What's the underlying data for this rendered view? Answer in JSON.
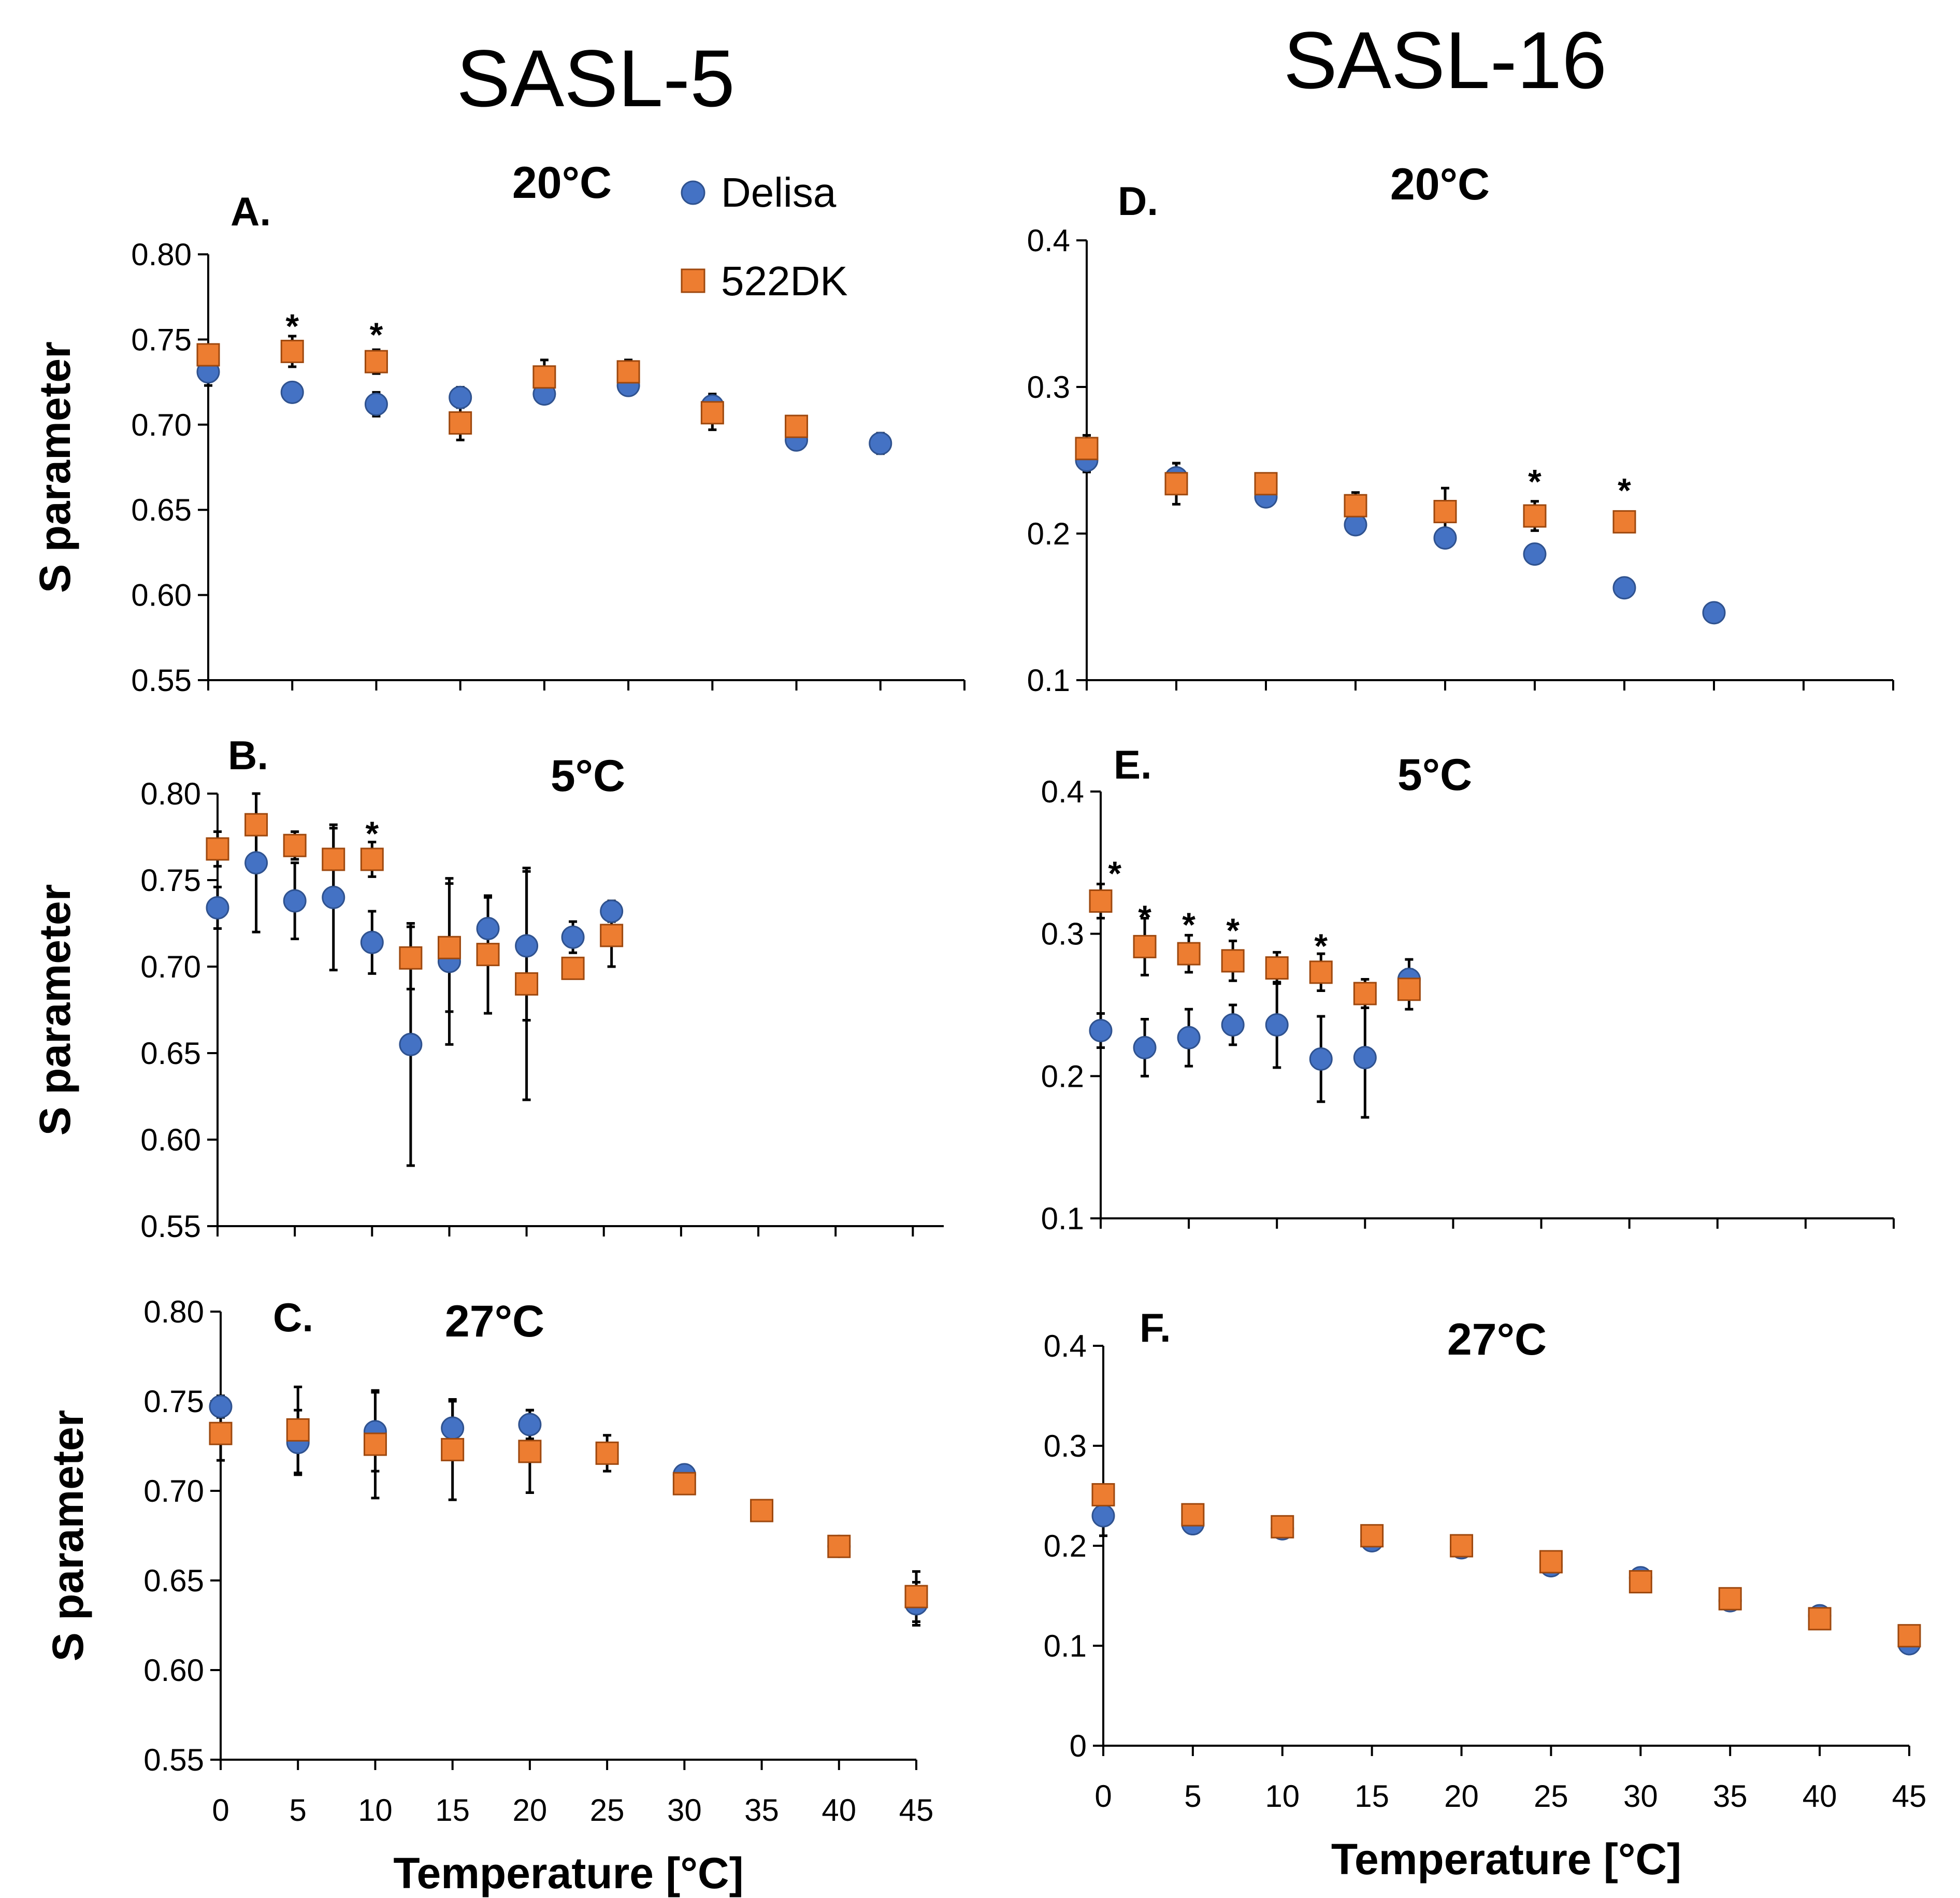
{
  "column_titles": [
    "SASL-5",
    "SASL-16"
  ],
  "legend": [
    {
      "label": "Delisa",
      "color": "#4472C4",
      "marker": "circle"
    },
    {
      "label": "522DK",
      "color": "#ED7D31",
      "marker": "square"
    }
  ],
  "chart_data": [
    {
      "type": "scatter",
      "panel": "A.",
      "title": "20°C",
      "xlabel": "",
      "ylabel": "S parameter",
      "x_tick_labels_shown": false,
      "xlim": [
        0,
        45
      ],
      "ylim": [
        0.55,
        0.8
      ],
      "yticks": [
        "0.80",
        "0.75",
        "0.70",
        "0.65",
        "0.60",
        "0.55"
      ],
      "yticks_values": [
        0.8,
        0.75,
        0.7,
        0.65,
        0.6,
        0.55
      ],
      "series": [
        {
          "name": "Delisa",
          "x": [
            0,
            5,
            10,
            15,
            20,
            25,
            30,
            35,
            40
          ],
          "y": [
            0.731,
            0.719,
            0.712,
            0.716,
            0.718,
            0.723,
            0.711,
            0.691,
            0.689
          ],
          "err": [
            0.008,
            0.004,
            0.007,
            0.006,
            0.004,
            0.005,
            0.007,
            0.005,
            0.006
          ]
        },
        {
          "name": "522DK",
          "x": [
            0,
            5,
            10,
            15,
            20,
            25,
            30,
            35
          ],
          "y": [
            0.741,
            0.743,
            0.737,
            0.701,
            0.728,
            0.731,
            0.707,
            0.699
          ],
          "err": [
            0.006,
            0.009,
            0.007,
            0.01,
            0.01,
            0.007,
            0.01,
            0.004
          ]
        }
      ],
      "significance_markers": [
        {
          "x": 5,
          "y": 0.76,
          "text": "*"
        },
        {
          "x": 10,
          "y": 0.755,
          "text": "*"
        }
      ]
    },
    {
      "type": "scatter",
      "panel": "B.",
      "title": "5°C",
      "xlabel": "",
      "ylabel": "S parameter",
      "x_tick_labels_shown": false,
      "xlim": [
        0,
        47
      ],
      "ylim": [
        0.55,
        0.8
      ],
      "yticks": [
        "0.80",
        "0.75",
        "0.70",
        "0.65",
        "0.60",
        "0.55"
      ],
      "yticks_values": [
        0.8,
        0.75,
        0.7,
        0.65,
        0.6,
        0.55
      ],
      "series": [
        {
          "name": "Delisa",
          "x": [
            0,
            2.5,
            5,
            7.5,
            10,
            12.5,
            15,
            17.5,
            20,
            23,
            25.5
          ],
          "y": [
            0.734,
            0.76,
            0.738,
            0.74,
            0.714,
            0.655,
            0.703,
            0.722,
            0.712,
            0.717,
            0.732
          ],
          "err": [
            0.012,
            0.04,
            0.022,
            0.042,
            0.018,
            0.07,
            0.048,
            0.018,
            0.043,
            0.009,
            0.006
          ]
        },
        {
          "name": "522DK",
          "x": [
            0,
            2.5,
            5,
            7.5,
            10,
            12.5,
            15,
            17.5,
            20,
            23,
            25.5
          ],
          "y": [
            0.768,
            0.782,
            0.77,
            0.762,
            0.762,
            0.705,
            0.711,
            0.707,
            0.69,
            0.699,
            0.718
          ],
          "err": [
            0.01,
            0.018,
            0.008,
            0.018,
            0.01,
            0.018,
            0.037,
            0.034,
            0.067,
            0.004,
            0.018
          ]
        }
      ],
      "significance_markers": [
        {
          "x": 10,
          "y": 0.779,
          "text": "*"
        }
      ]
    },
    {
      "type": "scatter",
      "panel": "C.",
      "title": "27°C",
      "xlabel": "Temperature [°C]",
      "ylabel": "S parameter",
      "x_tick_labels_shown": true,
      "xlim": [
        0,
        45
      ],
      "ylim": [
        0.55,
        0.8
      ],
      "xticks": [
        "0",
        "5",
        "10",
        "15",
        "20",
        "25",
        "30",
        "35",
        "40",
        "45"
      ],
      "xticks_values": [
        0,
        5,
        10,
        15,
        20,
        25,
        30,
        35,
        40,
        45
      ],
      "yticks": [
        "0.80",
        "0.75",
        "0.70",
        "0.65",
        "0.60",
        "0.55"
      ],
      "yticks_values": [
        0.8,
        0.75,
        0.7,
        0.65,
        0.6,
        0.55
      ],
      "series": [
        {
          "name": "Delisa",
          "x": [
            0,
            5,
            10,
            15,
            20,
            30,
            40,
            45
          ],
          "y": [
            0.747,
            0.727,
            0.733,
            0.735,
            0.737,
            0.709,
            0.669,
            0.637
          ],
          "err": [
            0.006,
            0.018,
            0.022,
            0.015,
            0.008,
            0.003,
            0.004,
            0.012
          ]
        },
        {
          "name": "522DK",
          "x": [
            0,
            5,
            10,
            15,
            20,
            25,
            30,
            35,
            40,
            45
          ],
          "y": [
            0.732,
            0.734,
            0.726,
            0.723,
            0.722,
            0.721,
            0.704,
            0.689,
            0.669,
            0.641
          ],
          "err": [
            0.015,
            0.024,
            0.03,
            0.028,
            0.023,
            0.01,
            0.004,
            0.004,
            0.003,
            0.014
          ]
        }
      ],
      "significance_markers": []
    },
    {
      "type": "scatter",
      "panel": "D.",
      "title": "20°C",
      "xlabel": "",
      "ylabel": "",
      "x_tick_labels_shown": false,
      "xlim": [
        0,
        45
      ],
      "ylim": [
        0.1,
        0.4
      ],
      "yticks": [
        "0.4",
        "0.3",
        "0.2",
        "0.1"
      ],
      "yticks_values": [
        0.4,
        0.3,
        0.2,
        0.1
      ],
      "series": [
        {
          "name": "Delisa",
          "x": [
            0,
            5,
            10,
            15,
            20,
            25,
            30,
            35
          ],
          "y": [
            0.25,
            0.238,
            0.225,
            0.206,
            0.197,
            0.186,
            0.163,
            0.146
          ],
          "err": [
            0.008,
            0.01,
            0.004,
            0.003,
            0.004,
            0.005,
            0.003,
            0.004
          ]
        },
        {
          "name": "522DK",
          "x": [
            0,
            5,
            10,
            15,
            20,
            25,
            30
          ],
          "y": [
            0.258,
            0.234,
            0.234,
            0.219,
            0.215,
            0.212,
            0.208
          ],
          "err": [
            0.009,
            0.014,
            0.005,
            0.009,
            0.016,
            0.01,
            0.004
          ]
        }
      ],
      "significance_markers": [
        {
          "x": 25,
          "y": 0.238,
          "text": "*"
        },
        {
          "x": 30,
          "y": 0.232,
          "text": "*"
        }
      ]
    },
    {
      "type": "scatter",
      "panel": "E.",
      "title": "5°C",
      "xlabel": "",
      "ylabel": "",
      "x_tick_labels_shown": false,
      "xlim": [
        0,
        45
      ],
      "ylim": [
        0.1,
        0.4
      ],
      "yticks": [
        "0.4",
        "0.3",
        "0.2",
        "0.1"
      ],
      "yticks_values": [
        0.4,
        0.3,
        0.2,
        0.1
      ],
      "series": [
        {
          "name": "Delisa",
          "x": [
            0,
            2.5,
            5,
            7.5,
            10,
            12.5,
            15,
            17.5
          ],
          "y": [
            0.232,
            0.22,
            0.227,
            0.236,
            0.236,
            0.212,
            0.213,
            0.268
          ],
          "err": [
            0.012,
            0.02,
            0.02,
            0.014,
            0.03,
            0.03,
            0.042,
            0.014
          ]
        },
        {
          "name": "522DK",
          "x": [
            0,
            2.5,
            5,
            7.5,
            10,
            12.5,
            15,
            17.5
          ],
          "y": [
            0.323,
            0.291,
            0.286,
            0.281,
            0.276,
            0.273,
            0.258,
            0.261
          ],
          "err": [
            0.012,
            0.02,
            0.013,
            0.014,
            0.011,
            0.013,
            0.01,
            0.014
          ]
        }
      ],
      "significance_markers": [
        {
          "x": 0.8,
          "y": 0.345,
          "text": "*"
        },
        {
          "x": 2.5,
          "y": 0.314,
          "text": "*"
        },
        {
          "x": 5,
          "y": 0.309,
          "text": "*"
        },
        {
          "x": 7.5,
          "y": 0.305,
          "text": "*"
        },
        {
          "x": 12.5,
          "y": 0.294,
          "text": "*"
        }
      ]
    },
    {
      "type": "scatter",
      "panel": "F.",
      "title": "27°C",
      "xlabel": "Temperature [°C]",
      "ylabel": "",
      "x_tick_labels_shown": true,
      "xlim": [
        0,
        45
      ],
      "ylim": [
        0,
        0.4
      ],
      "xticks": [
        "0",
        "5",
        "10",
        "15",
        "20",
        "25",
        "30",
        "35",
        "40",
        "45"
      ],
      "xticks_values": [
        0,
        5,
        10,
        15,
        20,
        25,
        30,
        35,
        40,
        45
      ],
      "yticks": [
        "0.4",
        "0.3",
        "0.2",
        "0.1",
        "0"
      ],
      "yticks_values": [
        0.4,
        0.3,
        0.2,
        0.1,
        0
      ],
      "series": [
        {
          "name": "Delisa",
          "x": [
            0,
            5,
            10,
            15,
            20,
            25,
            30,
            35,
            40,
            45
          ],
          "y": [
            0.23,
            0.222,
            0.217,
            0.205,
            0.198,
            0.18,
            0.168,
            0.145,
            0.13,
            0.102
          ],
          "err": [
            0.02,
            0.004,
            0.003,
            0.004,
            0.004,
            0.004,
            0.004,
            0.003,
            0.004,
            0.004
          ]
        },
        {
          "name": "522DK",
          "x": [
            0,
            5,
            10,
            15,
            20,
            25,
            30,
            35,
            40,
            45
          ],
          "y": [
            0.251,
            0.231,
            0.219,
            0.21,
            0.2,
            0.184,
            0.164,
            0.147,
            0.127,
            0.11
          ],
          "err": [
            0.006,
            0.006,
            0.004,
            0.004,
            0.003,
            0.004,
            0.004,
            0.003,
            0.003,
            0.004
          ]
        }
      ],
      "significance_markers": []
    }
  ]
}
